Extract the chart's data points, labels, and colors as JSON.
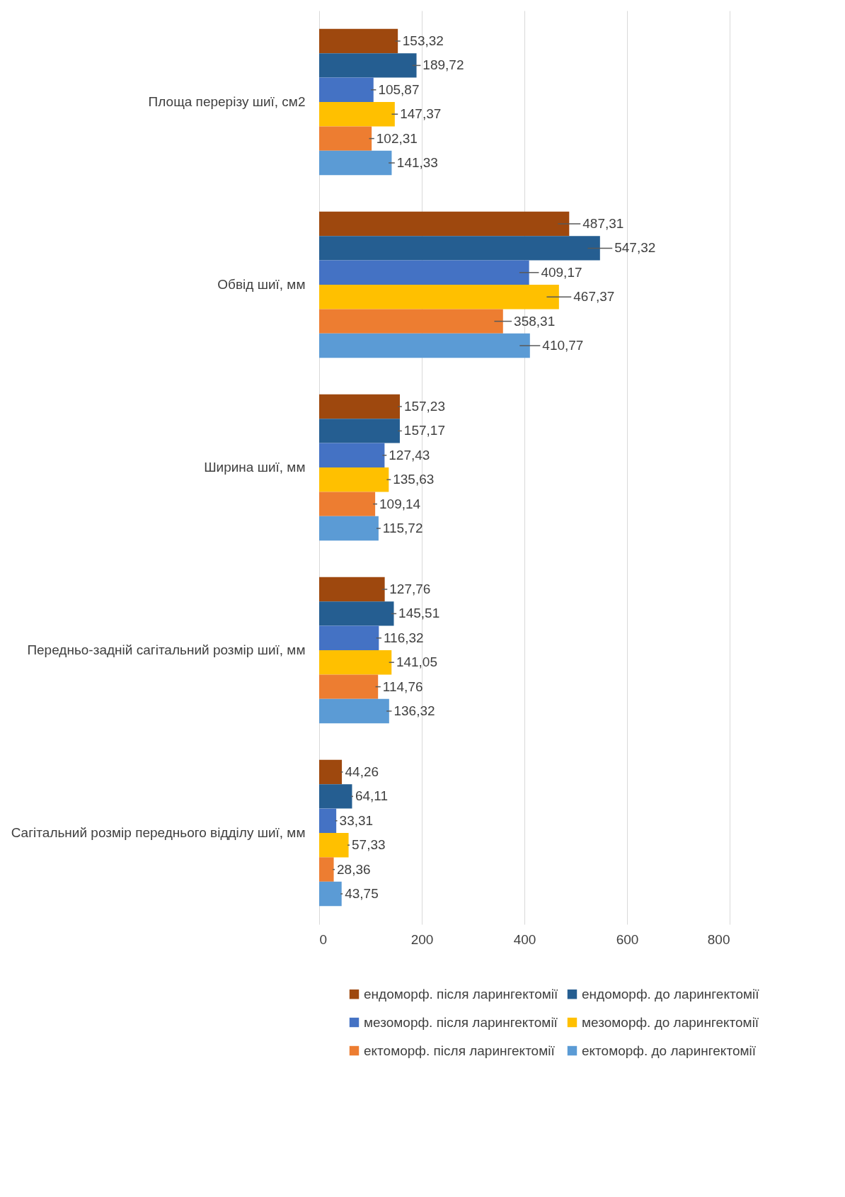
{
  "chart_data": {
    "type": "bar",
    "orientation": "horizontal",
    "categories": [
      "Площа перерізу шиї, см2",
      "Обвід шиї, мм",
      "Ширина шиї, мм",
      "Передньо-задній сагітальний розмір шиї, мм",
      "Сагітальний розмір переднього відділу шиї, мм"
    ],
    "series": [
      {
        "name": "ендоморф. після ларингектомії",
        "color": "#9e480e",
        "values": [
          153.32,
          487.31,
          157.23,
          127.76,
          44.26
        ],
        "value_labels": [
          "153,32",
          "487,31",
          "157,23",
          "127,76",
          "44,26"
        ],
        "errors": [
          5,
          22,
          4,
          5,
          2
        ]
      },
      {
        "name": "ендоморф. до ларингектомії",
        "color": "#255e91",
        "values": [
          189.72,
          547.32,
          157.17,
          145.51,
          64.11
        ],
        "value_labels": [
          "189,72",
          "547,32",
          "157,17",
          "145,51",
          "64,11"
        ],
        "errors": [
          8,
          24,
          4,
          5,
          2
        ]
      },
      {
        "name": "мезоморф. після ларингектомії",
        "color": "#4472c4",
        "values": [
          105.87,
          409.17,
          127.43,
          116.32,
          33.31
        ],
        "value_labels": [
          "105,87",
          "409,17",
          "127,43",
          "116,32",
          "33,31"
        ],
        "errors": [
          5,
          19,
          4,
          5,
          2
        ]
      },
      {
        "name": "мезоморф. до ларингектомії",
        "color": "#ffc000",
        "values": [
          147.37,
          467.37,
          135.63,
          141.05,
          57.33
        ],
        "value_labels": [
          "147,37",
          "467,37",
          "135,63",
          "141,05",
          "57,33"
        ],
        "errors": [
          6,
          24,
          4,
          5,
          2
        ]
      },
      {
        "name": "ектоморф. після ларингектомії",
        "color": "#ed7d31",
        "values": [
          102.31,
          358.31,
          109.14,
          114.76,
          28.36
        ],
        "value_labels": [
          "102,31",
          "358,31",
          "109,14",
          "114,76",
          "28,36"
        ],
        "errors": [
          5,
          17,
          4,
          5,
          2
        ]
      },
      {
        "name": "ектоморф. до ларингектомії",
        "color": "#5b9bd5",
        "values": [
          141.33,
          410.77,
          115.72,
          136.32,
          43.75
        ],
        "value_labels": [
          "141,33",
          "410,77",
          "115,72",
          "136,32",
          "43,75"
        ],
        "errors": [
          6,
          20,
          4,
          5,
          2
        ]
      }
    ],
    "xlim": [
      0,
      800
    ],
    "xticks": [
      0,
      200,
      400,
      600,
      800
    ],
    "grid": "x",
    "legend": "bottom"
  }
}
